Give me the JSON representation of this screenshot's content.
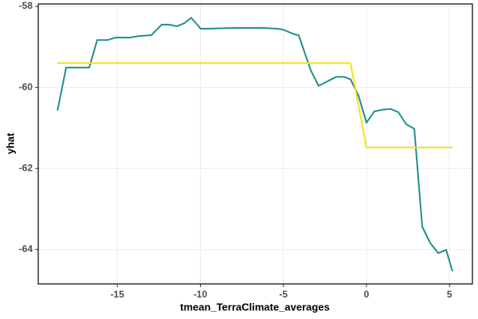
{
  "chart_data": {
    "type": "line",
    "x_label": "tmean_TerraClimate_averages",
    "y_label": "yhat",
    "xlim": [
      -19.76,
      6.38
    ],
    "ylim": [
      -64.85,
      -57.94
    ],
    "xticks": [
      -15,
      -10,
      -5,
      0,
      5
    ],
    "yticks": [
      -58,
      -60,
      -62,
      -64
    ],
    "grid": true,
    "series": [
      {
        "color": "#1f8f8a",
        "x": [
          -18.6,
          -18.08,
          -16.69,
          -16.21,
          -15.59,
          -15.11,
          -14.25,
          -13.67,
          -12.95,
          -12.33,
          -11.89,
          -11.41,
          -10.94,
          -10.55,
          -9.98,
          -9.59,
          -7.91,
          -6.24,
          -5.37,
          -5.04,
          -4.32,
          -4.08,
          -3.36,
          -2.88,
          -2.4,
          -1.82,
          -1.34,
          -0.96,
          -0.48,
          0,
          0.48,
          0.96,
          1.44,
          1.92,
          2.4,
          2.88,
          3.36,
          3.84,
          4.32,
          4.8,
          5.18
        ],
        "values": [
          -60.57,
          -59.51,
          -59.51,
          -58.83,
          -58.83,
          -58.77,
          -58.77,
          -58.73,
          -58.71,
          -58.45,
          -58.45,
          -58.49,
          -58.41,
          -58.28,
          -58.55,
          -58.55,
          -58.53,
          -58.53,
          -58.55,
          -58.57,
          -58.69,
          -58.71,
          -59.57,
          -59.96,
          -59.86,
          -59.74,
          -59.74,
          -59.8,
          -60.2,
          -60.87,
          -60.59,
          -60.55,
          -60.53,
          -60.61,
          -60.91,
          -61.02,
          -63.44,
          -63.84,
          -64.09,
          -64.01,
          -64.54
        ]
      },
      {
        "color": "#f5e11f",
        "x": [
          -18.6,
          -0.96,
          0,
          5.18
        ],
        "values": [
          -59.4,
          -59.4,
          -61.48,
          -61.48
        ]
      }
    ]
  }
}
